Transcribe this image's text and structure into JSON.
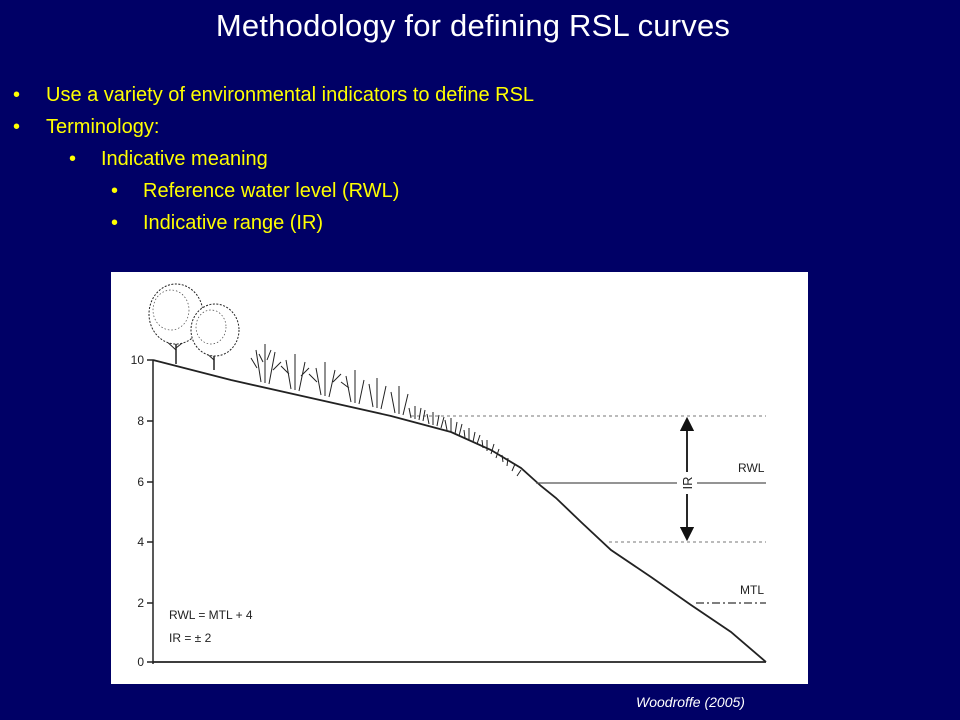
{
  "title": "Methodology for defining RSL curves",
  "bullets": [
    {
      "text": "Use a variety of environmental indicators to define RSL"
    },
    {
      "text": "Terminology:"
    },
    {
      "text": "Indicative meaning"
    },
    {
      "text": "Reference water level (RWL)"
    },
    {
      "text": "Indicative range (IR)"
    }
  ],
  "diagram": {
    "y_ticks": [
      "10",
      "8",
      "6",
      "4",
      "2",
      "0"
    ],
    "label_ir": "IR",
    "label_rwl": "RWL",
    "label_mtl": "MTL",
    "formula_rwl": "RWL = MTL + 4",
    "formula_ir": "IR = ± 2"
  },
  "credit": "Woodroffe (2005)",
  "colors": {
    "background": "#000066",
    "title": "#ffffff",
    "bullet": "#ffff00",
    "figure_bg": "#ffffff"
  }
}
